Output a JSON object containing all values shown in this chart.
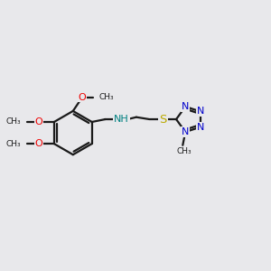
{
  "background_color": "#e8e8eb",
  "bond_color": "#1a1a1a",
  "oxygen_color": "#ee0000",
  "nitrogen_color": "#0000cc",
  "nh_color": "#008080",
  "sulfur_color": "#bbaa00",
  "font_size": 7.5,
  "bond_width": 1.6,
  "figsize": [
    3.0,
    3.0
  ],
  "dpi": 100,
  "xlim": [
    0,
    10
  ],
  "ylim": [
    0,
    10
  ]
}
